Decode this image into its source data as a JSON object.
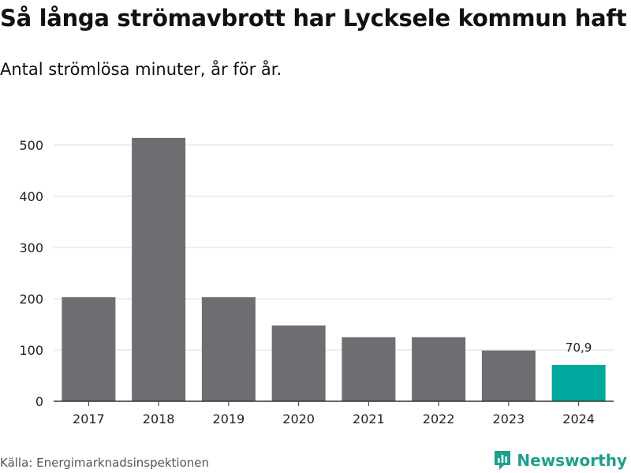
{
  "header": {
    "title": "Så långa strömavbrott har Lycksele kommun haft",
    "subtitle": "Antal strömlösa minuter, år för år."
  },
  "footer": {
    "source": "Källa: Energimarknadsinspektionen",
    "brand": "Newsworthy",
    "brand_icon": "newsworthy-logo-icon"
  },
  "colors": {
    "bar": "#6e6d71",
    "highlight": "#00a99d",
    "grid": "#dddddd",
    "axis": "#333333",
    "brand": "#1f9e8e"
  },
  "chart_data": {
    "type": "bar",
    "title": "Så långa strömavbrott har Lycksele kommun haft",
    "subtitle": "Antal strömlösa minuter, år för år.",
    "xlabel": "",
    "ylabel": "",
    "categories": [
      "2017",
      "2018",
      "2019",
      "2020",
      "2021",
      "2022",
      "2023",
      "2024"
    ],
    "values": [
      203,
      514,
      203,
      148,
      125,
      125,
      99,
      70.9
    ],
    "highlight_index": 7,
    "data_labels": [
      {
        "index": 7,
        "text": "70,9"
      }
    ],
    "ylim": [
      0,
      500
    ],
    "yticks": [
      0,
      100,
      200,
      300,
      400,
      500
    ],
    "grid": true,
    "legend": "none"
  }
}
